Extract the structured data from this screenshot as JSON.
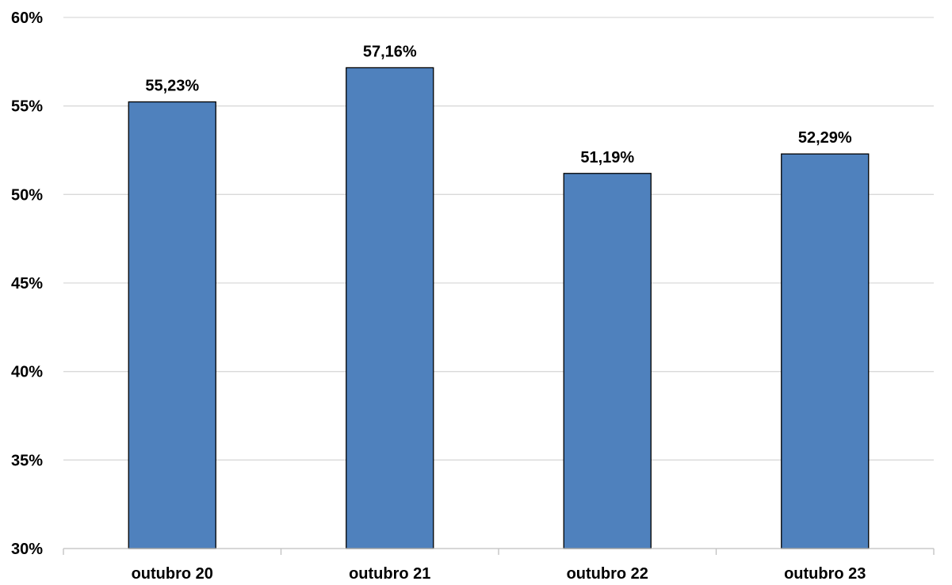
{
  "chart_data": {
    "type": "bar",
    "title": "",
    "xlabel": "",
    "ylabel": "",
    "categories": [
      "outubro 20",
      "outubro 21",
      "outubro 22",
      "outubro 23"
    ],
    "values": [
      55.23,
      57.16,
      51.19,
      52.29
    ],
    "value_labels": [
      "55,23%",
      "57,16%",
      "51,19%",
      "52,29%"
    ],
    "ylim": [
      30,
      60
    ],
    "yticks": [
      30,
      35,
      40,
      45,
      50,
      55,
      60
    ],
    "ytick_labels": [
      "30%",
      "35%",
      "40%",
      "45%",
      "50%",
      "55%",
      "60%"
    ],
    "grid": true,
    "legend": "none",
    "colors": {
      "bar": "#4f81bd",
      "bar_border": "#000000",
      "grid": "#d9d9d9"
    }
  }
}
